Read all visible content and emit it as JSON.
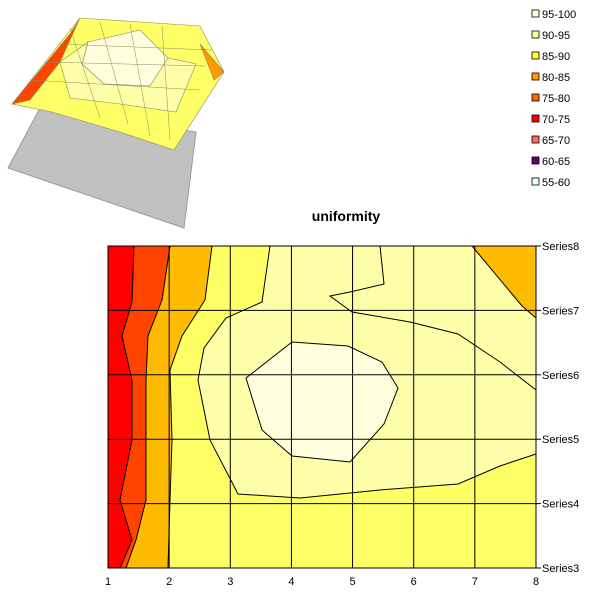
{
  "chart_data": {
    "type": "contour",
    "title": "uniformity",
    "xlabel": "",
    "ylabel": "",
    "x_categories": [
      "1",
      "2",
      "3",
      "4",
      "5",
      "6",
      "7",
      "8"
    ],
    "series_labels": [
      "Series3",
      "Series4",
      "Series5",
      "Series6",
      "Series7",
      "Series8"
    ],
    "grid": true,
    "legend_position": "top-right",
    "legend": [
      {
        "label": "95-100",
        "color": "#ffffe6"
      },
      {
        "label": "90-95",
        "color": "#ffff99"
      },
      {
        "label": "85-90",
        "color": "#ffff33"
      },
      {
        "label": "80-85",
        "color": "#ff9900"
      },
      {
        "label": "75-80",
        "color": "#ff6600"
      },
      {
        "label": "70-75",
        "color": "#ff0000"
      },
      {
        "label": "65-70",
        "color": "#ff6666"
      },
      {
        "label": "60-65",
        "color": "#660066"
      },
      {
        "label": "55-60",
        "color": "#e6ffff"
      }
    ],
    "bands": [
      {
        "range": "70-75",
        "color": "#ff0000"
      },
      {
        "range": "75-80",
        "color": "#ff4400"
      },
      {
        "range": "80-85",
        "color": "#ffbb00"
      },
      {
        "range": "85-90",
        "color": "#ffff66"
      },
      {
        "range": "90-95",
        "color": "#ffffaa"
      },
      {
        "range": "95-100",
        "color": "#ffffdd"
      }
    ],
    "thumbnail": {
      "type": "surface-3d"
    }
  }
}
